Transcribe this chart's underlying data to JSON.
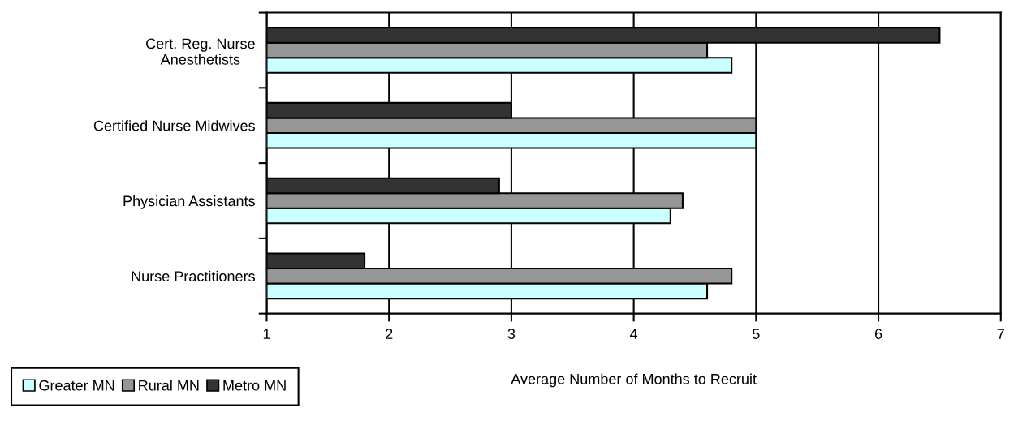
{
  "chart_data": {
    "type": "bar",
    "orientation": "horizontal",
    "categories": [
      "Cert. Reg. Nurse\nAnesthetists",
      "Certified Nurse Midwives",
      "Physician Assistants",
      "Nurse Practitioners"
    ],
    "series": [
      {
        "name": "Greater MN",
        "color": "#ccffff",
        "values": [
          4.8,
          5.0,
          4.3,
          4.6
        ]
      },
      {
        "name": "Rural MN",
        "color": "#969696",
        "values": [
          4.6,
          5.0,
          4.4,
          4.8
        ]
      },
      {
        "name": "Metro MN",
        "color": "#333333",
        "values": [
          6.5,
          3.0,
          2.9,
          1.8
        ]
      }
    ],
    "xlim": [
      1,
      7
    ],
    "xticks": [
      1,
      2,
      3,
      4,
      5,
      6,
      7
    ],
    "xlabel": "Average Number of Months to Recruit",
    "grid": "x",
    "legend": "bottom left"
  }
}
